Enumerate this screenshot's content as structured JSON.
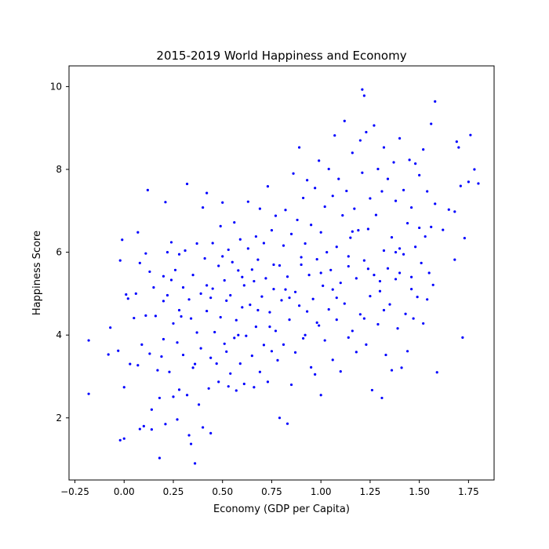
{
  "chart_data": {
    "type": "scatter",
    "title": "2015-2019 World Happiness and Economy",
    "xlabel": "Economy (GDP per Capita)",
    "ylabel": "Happiness Score",
    "xlim": [
      -0.28,
      1.88
    ],
    "ylim": [
      0.5,
      10.5
    ],
    "xticks": [
      -0.25,
      0.0,
      0.25,
      0.5,
      0.75,
      1.0,
      1.25,
      1.5,
      1.75
    ],
    "xtick_labels": [
      "−0.25",
      "0.00",
      "0.25",
      "0.50",
      "0.75",
      "1.00",
      "1.25",
      "1.50",
      "1.75"
    ],
    "yticks": [
      2,
      4,
      6,
      8,
      10
    ],
    "ytick_labels": [
      "2",
      "4",
      "6",
      "8",
      "10"
    ],
    "grid": false,
    "legend": "none",
    "marker_color": "#0000ff",
    "series": [
      {
        "points": [
          [
            -0.18,
            3.87
          ],
          [
            -0.18,
            2.58
          ],
          [
            -0.07,
            4.18
          ],
          [
            -0.08,
            3.53
          ],
          [
            -0.03,
            3.62
          ],
          [
            -0.02,
            1.46
          ],
          [
            0.0,
            1.5
          ],
          [
            -0.01,
            6.3
          ],
          [
            -0.02,
            5.8
          ],
          [
            0.0,
            2.74
          ],
          [
            0.01,
            4.98
          ],
          [
            0.02,
            4.88
          ],
          [
            0.03,
            3.3
          ],
          [
            0.05,
            4.41
          ],
          [
            0.06,
            5.0
          ],
          [
            0.07,
            3.27
          ],
          [
            0.07,
            6.48
          ],
          [
            0.08,
            5.74
          ],
          [
            0.09,
            3.77
          ],
          [
            0.08,
            1.73
          ],
          [
            0.1,
            1.8
          ],
          [
            0.11,
            4.47
          ],
          [
            0.12,
            7.5
          ],
          [
            0.11,
            5.97
          ],
          [
            0.13,
            5.53
          ],
          [
            0.13,
            3.55
          ],
          [
            0.14,
            2.2
          ],
          [
            0.14,
            1.72
          ],
          [
            0.15,
            5.15
          ],
          [
            0.16,
            4.46
          ],
          [
            0.17,
            3.15
          ],
          [
            0.18,
            1.03
          ],
          [
            0.18,
            2.48
          ],
          [
            0.19,
            3.48
          ],
          [
            0.2,
            5.42
          ],
          [
            0.2,
            4.82
          ],
          [
            0.21,
            7.21
          ],
          [
            0.21,
            1.85
          ],
          [
            0.22,
            4.96
          ],
          [
            0.22,
            6.0
          ],
          [
            0.23,
            3.11
          ],
          [
            0.24,
            5.33
          ],
          [
            0.24,
            6.24
          ],
          [
            0.25,
            2.51
          ],
          [
            0.25,
            4.28
          ],
          [
            0.26,
            5.57
          ],
          [
            0.27,
            3.82
          ],
          [
            0.27,
            1.96
          ],
          [
            0.28,
            5.95
          ],
          [
            0.28,
            2.68
          ],
          [
            0.29,
            4.45
          ],
          [
            0.3,
            5.15
          ],
          [
            0.3,
            3.52
          ],
          [
            0.31,
            6.04
          ],
          [
            0.32,
            7.65
          ],
          [
            0.32,
            2.55
          ],
          [
            0.33,
            4.86
          ],
          [
            0.33,
            1.58
          ],
          [
            0.34,
            1.37
          ],
          [
            0.35,
            5.45
          ],
          [
            0.35,
            3.21
          ],
          [
            0.36,
            0.9
          ],
          [
            0.37,
            4.06
          ],
          [
            0.37,
            6.21
          ],
          [
            0.38,
            2.32
          ],
          [
            0.39,
            5.0
          ],
          [
            0.39,
            3.68
          ],
          [
            0.4,
            7.08
          ],
          [
            0.4,
            1.77
          ],
          [
            0.41,
            5.85
          ],
          [
            0.42,
            4.58
          ],
          [
            0.42,
            7.43
          ],
          [
            0.43,
            2.71
          ],
          [
            0.44,
            3.45
          ],
          [
            0.44,
            1.63
          ],
          [
            0.45,
            6.22
          ],
          [
            0.45,
            5.12
          ],
          [
            0.46,
            4.07
          ],
          [
            0.47,
            3.31
          ],
          [
            0.48,
            5.67
          ],
          [
            0.48,
            2.87
          ],
          [
            0.49,
            6.63
          ],
          [
            0.49,
            4.43
          ],
          [
            0.5,
            7.2
          ],
          [
            0.51,
            3.79
          ],
          [
            0.51,
            5.32
          ],
          [
            0.52,
            4.83
          ],
          [
            0.53,
            2.76
          ],
          [
            0.53,
            6.06
          ],
          [
            0.54,
            3.07
          ],
          [
            0.54,
            4.96
          ],
          [
            0.55,
            5.76
          ],
          [
            0.56,
            3.93
          ],
          [
            0.56,
            6.72
          ],
          [
            0.57,
            4.36
          ],
          [
            0.57,
            2.66
          ],
          [
            0.58,
            5.56
          ],
          [
            0.59,
            3.31
          ],
          [
            0.59,
            6.31
          ],
          [
            0.6,
            4.67
          ],
          [
            0.61,
            2.82
          ],
          [
            0.61,
            5.2
          ],
          [
            0.62,
            3.98
          ],
          [
            0.63,
            6.09
          ],
          [
            0.63,
            7.22
          ],
          [
            0.64,
            4.73
          ],
          [
            0.65,
            3.5
          ],
          [
            0.65,
            5.58
          ],
          [
            0.66,
            2.74
          ],
          [
            0.67,
            6.38
          ],
          [
            0.67,
            4.2
          ],
          [
            0.68,
            5.82
          ],
          [
            0.69,
            3.11
          ],
          [
            0.69,
            7.05
          ],
          [
            0.7,
            4.93
          ],
          [
            0.71,
            3.76
          ],
          [
            0.71,
            6.22
          ],
          [
            0.72,
            5.37
          ],
          [
            0.73,
            7.59
          ],
          [
            0.73,
            2.87
          ],
          [
            0.74,
            4.55
          ],
          [
            0.75,
            6.53
          ],
          [
            0.75,
            3.61
          ],
          [
            0.76,
            5.11
          ],
          [
            0.77,
            4.1
          ],
          [
            0.77,
            6.88
          ],
          [
            0.78,
            3.39
          ],
          [
            0.79,
            5.68
          ],
          [
            0.79,
            2.0
          ],
          [
            0.8,
            4.84
          ],
          [
            0.81,
            6.16
          ],
          [
            0.81,
            3.77
          ],
          [
            0.82,
            7.02
          ],
          [
            0.83,
            5.41
          ],
          [
            0.83,
            1.86
          ],
          [
            0.84,
            4.37
          ],
          [
            0.85,
            6.44
          ],
          [
            0.85,
            2.8
          ],
          [
            0.86,
            7.9
          ],
          [
            0.87,
            5.04
          ],
          [
            0.87,
            3.58
          ],
          [
            0.88,
            6.78
          ],
          [
            0.89,
            8.53
          ],
          [
            0.89,
            4.71
          ],
          [
            0.9,
            5.88
          ],
          [
            0.91,
            7.31
          ],
          [
            0.91,
            3.92
          ],
          [
            0.92,
            6.21
          ],
          [
            0.93,
            4.57
          ],
          [
            0.93,
            7.74
          ],
          [
            0.94,
            5.45
          ],
          [
            0.95,
            3.22
          ],
          [
            0.95,
            6.66
          ],
          [
            0.96,
            4.87
          ],
          [
            0.97,
            7.55
          ],
          [
            0.97,
            3.05
          ],
          [
            0.98,
            5.83
          ],
          [
            0.99,
            8.21
          ],
          [
            0.99,
            4.23
          ],
          [
            1.0,
            6.48
          ],
          [
            1.0,
            2.55
          ],
          [
            1.01,
            5.19
          ],
          [
            1.02,
            7.1
          ],
          [
            1.02,
            3.87
          ],
          [
            1.03,
            6.0
          ],
          [
            1.04,
            8.01
          ],
          [
            1.04,
            4.62
          ],
          [
            1.05,
            5.57
          ],
          [
            1.06,
            7.36
          ],
          [
            1.06,
            3.4
          ],
          [
            1.07,
            8.82
          ],
          [
            1.08,
            6.13
          ],
          [
            1.08,
            4.37
          ],
          [
            1.09,
            7.77
          ],
          [
            1.1,
            5.26
          ],
          [
            1.1,
            3.12
          ],
          [
            1.11,
            6.89
          ],
          [
            1.12,
            9.17
          ],
          [
            1.12,
            4.76
          ],
          [
            1.13,
            7.48
          ],
          [
            1.14,
            5.66
          ],
          [
            1.14,
            3.94
          ],
          [
            1.15,
            6.35
          ],
          [
            1.16,
            8.4
          ],
          [
            1.16,
            4.1
          ],
          [
            1.17,
            7.05
          ],
          [
            1.18,
            5.37
          ],
          [
            1.18,
            3.59
          ],
          [
            1.19,
            6.53
          ],
          [
            1.2,
            8.7
          ],
          [
            1.2,
            4.5
          ],
          [
            1.21,
            7.92
          ],
          [
            1.21,
            9.93
          ],
          [
            1.22,
            9.78
          ],
          [
            1.22,
            5.8
          ],
          [
            1.23,
            3.77
          ],
          [
            1.23,
            8.9
          ],
          [
            1.24,
            6.56
          ],
          [
            1.25,
            4.94
          ],
          [
            1.25,
            7.3
          ],
          [
            1.26,
            2.67
          ],
          [
            1.27,
            5.45
          ],
          [
            1.27,
            9.06
          ],
          [
            1.28,
            6.9
          ],
          [
            1.29,
            4.26
          ],
          [
            1.29,
            8.01
          ],
          [
            1.3,
            5.06
          ],
          [
            1.31,
            2.48
          ],
          [
            1.31,
            7.47
          ],
          [
            1.32,
            6.04
          ],
          [
            1.32,
            8.53
          ],
          [
            1.33,
            3.52
          ],
          [
            1.34,
            5.61
          ],
          [
            1.34,
            7.77
          ],
          [
            1.35,
            4.74
          ],
          [
            1.36,
            6.36
          ],
          [
            1.36,
            3.15
          ],
          [
            1.37,
            8.17
          ],
          [
            1.38,
            5.35
          ],
          [
            1.38,
            7.24
          ],
          [
            1.39,
            4.16
          ],
          [
            1.4,
            6.09
          ],
          [
            1.4,
            8.75
          ],
          [
            1.41,
            3.21
          ],
          [
            1.42,
            5.95
          ],
          [
            1.42,
            7.5
          ],
          [
            1.43,
            4.51
          ],
          [
            1.44,
            6.7
          ],
          [
            1.44,
            3.61
          ],
          [
            1.45,
            8.23
          ],
          [
            1.46,
            5.11
          ],
          [
            1.46,
            7.08
          ],
          [
            1.47,
            4.4
          ],
          [
            1.48,
            6.13
          ],
          [
            1.48,
            8.14
          ],
          [
            1.49,
            4.92
          ],
          [
            1.5,
            6.59
          ],
          [
            1.5,
            7.86
          ],
          [
            1.51,
            5.74
          ],
          [
            1.52,
            4.28
          ],
          [
            1.52,
            8.48
          ],
          [
            1.53,
            6.38
          ],
          [
            1.54,
            4.86
          ],
          [
            1.54,
            7.47
          ],
          [
            1.55,
            5.5
          ],
          [
            1.56,
            9.1
          ],
          [
            1.56,
            6.61
          ],
          [
            1.57,
            5.21
          ],
          [
            1.58,
            9.64
          ],
          [
            1.58,
            7.17
          ],
          [
            1.59,
            3.1
          ],
          [
            1.62,
            6.54
          ],
          [
            1.65,
            7.03
          ],
          [
            1.68,
            6.98
          ],
          [
            1.68,
            5.82
          ],
          [
            1.69,
            8.67
          ],
          [
            1.7,
            8.53
          ],
          [
            1.71,
            7.6
          ],
          [
            1.72,
            3.94
          ],
          [
            1.73,
            6.34
          ],
          [
            1.75,
            7.7
          ],
          [
            1.76,
            8.83
          ],
          [
            1.78,
            8.0
          ],
          [
            1.8,
            7.66
          ],
          [
            0.34,
            4.4
          ],
          [
            0.42,
            5.2
          ],
          [
            0.5,
            5.9
          ],
          [
            0.58,
            4.0
          ],
          [
            0.66,
            5.3
          ],
          [
            0.74,
            4.2
          ],
          [
            0.82,
            5.1
          ],
          [
            0.9,
            5.7
          ],
          [
            0.98,
            4.3
          ],
          [
            1.06,
            5.1
          ],
          [
            1.14,
            5.9
          ],
          [
            1.22,
            4.4
          ],
          [
            1.3,
            5.3
          ],
          [
            1.38,
            6.0
          ],
          [
            1.46,
            5.4
          ],
          [
            0.2,
            3.9
          ],
          [
            0.28,
            4.6
          ],
          [
            0.36,
            3.3
          ],
          [
            0.44,
            4.9
          ],
          [
            0.52,
            3.6
          ],
          [
            0.6,
            5.4
          ],
          [
            0.68,
            4.6
          ],
          [
            0.76,
            5.7
          ],
          [
            0.84,
            4.9
          ],
          [
            0.92,
            4.0
          ],
          [
            1.0,
            5.5
          ],
          [
            1.08,
            4.9
          ],
          [
            1.16,
            6.5
          ],
          [
            1.24,
            5.6
          ],
          [
            1.32,
            4.6
          ],
          [
            1.4,
            5.5
          ]
        ]
      }
    ]
  }
}
